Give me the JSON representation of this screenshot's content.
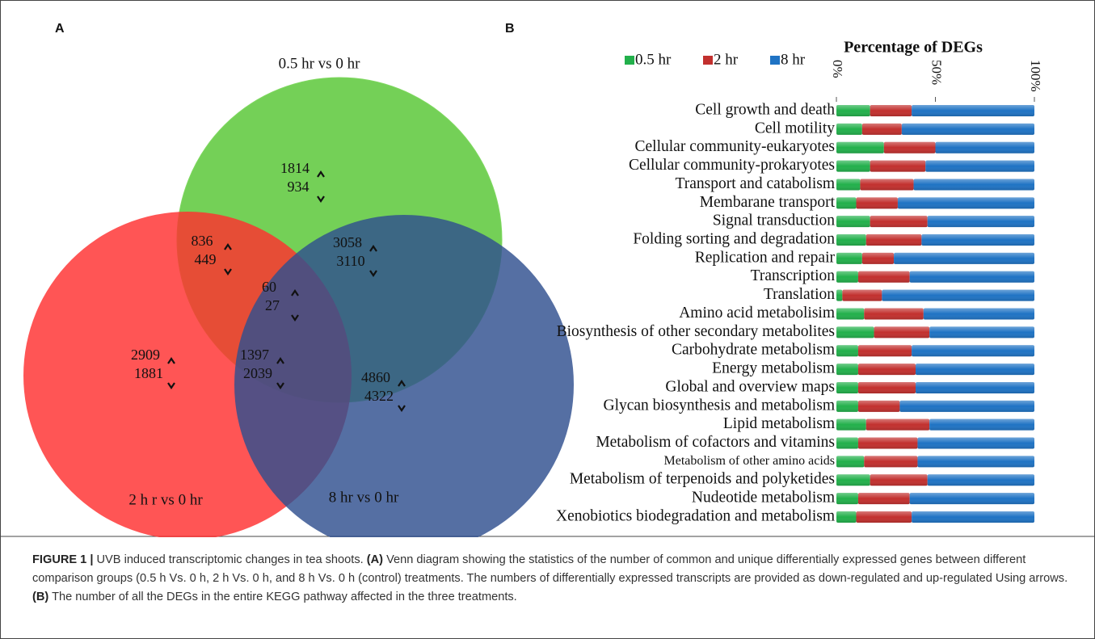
{
  "panel_a": {
    "label": "A",
    "sets": [
      "0.5 hr vs 0 hr",
      "2 h r vs 0 hr",
      "8 hr vs 0 hr"
    ],
    "regions": [
      [
        1814,
        934
      ],
      [
        836,
        449
      ],
      [
        3058,
        3110
      ],
      [
        60,
        27
      ],
      [
        2909,
        1881
      ],
      [
        1397,
        2039
      ],
      [
        4860,
        4322
      ]
    ]
  },
  "panel_b_label": "B",
  "chart_data": {
    "type": "stacked_barh",
    "title": "Percentage of DEGs",
    "categories": [
      "Cell growth and death",
      "Cell motility",
      "Cellular community-eukaryotes",
      "Cellular community-prokaryotes",
      "Transport and catabolism",
      "Membarane transport",
      "Signal transduction",
      "Folding sorting and degradation",
      "Replication and repair",
      "Transcription",
      "Translation",
      "Amino acid metabolisim",
      "Biosynthesis of other secondary metabolites",
      "Carbohydrate metabolism",
      "Energy metabolism",
      "Global and overview maps",
      "Glycan biosynthesis and metabolism",
      "Lipid metabolism",
      "Metabolism of cofactors and vitamins",
      "Metabolism of other amino acids",
      "Metabolism of terpenoids and polyketides",
      "Nudeotide metabolism",
      "Xenobiotics biodegradation and metabolism"
    ],
    "series": [
      {
        "name": "0.5 hr",
        "color": "#22b04b",
        "values": [
          17,
          13,
          24,
          17,
          12,
          10,
          17,
          15,
          13,
          11,
          3,
          14,
          19,
          11,
          11,
          11,
          11,
          15,
          11,
          14,
          17,
          11,
          10
        ]
      },
      {
        "name": "2 hr",
        "color": "#c2302e",
        "values": [
          21,
          20,
          26,
          28,
          27,
          21,
          29,
          28,
          16,
          26,
          20,
          30,
          28,
          27,
          29,
          29,
          21,
          32,
          30,
          27,
          29,
          26,
          28
        ]
      },
      {
        "name": "8 hr",
        "color": "#1f73c4",
        "values": [
          62,
          67,
          50,
          55,
          61,
          69,
          54,
          57,
          71,
          63,
          77,
          56,
          53,
          62,
          60,
          60,
          68,
          53,
          59,
          59,
          54,
          63,
          62
        ]
      }
    ],
    "xlim": [
      0,
      100
    ],
    "xticks": [
      {
        "value": 0,
        "label": "0%"
      },
      {
        "value": 50,
        "label": "50%"
      },
      {
        "value": 100,
        "label": "100%"
      }
    ]
  },
  "caption": {
    "label": "FIGURE 1 |",
    "title": "UVB induced transcriptomic changes in tea shoots.",
    "a_label": "(A)",
    "a_text": "Venn diagram showing the statistics of the number of common and unique differentially expressed genes between different comparison groups (0.5 h Vs. 0 h, 2 h Vs. 0 h, and 8 h Vs. 0 h (control) treatments. The numbers of differentially expressed transcripts are provided as down-regulated and up-regulated Using arrows.",
    "b_label": "(B)",
    "b_text": "The number of all the DEGs in the entire KEGG pathway affected in the three treatments."
  }
}
